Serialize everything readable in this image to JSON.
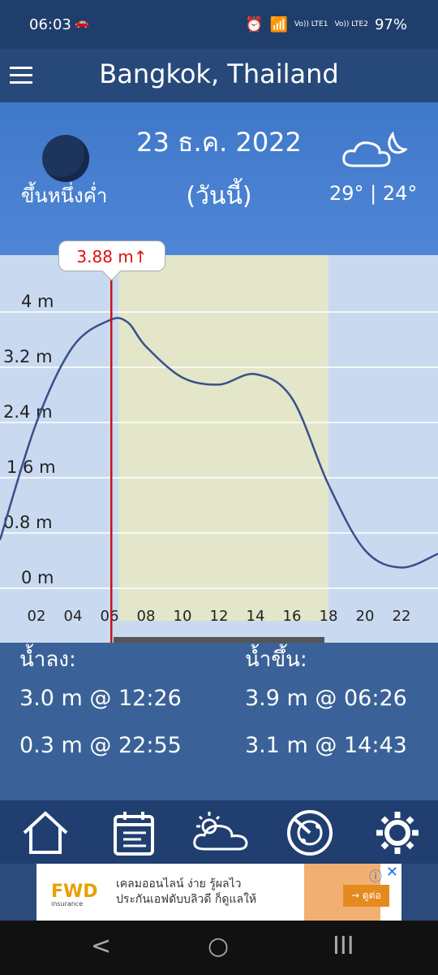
{
  "status_bar": {
    "time": "06:03",
    "signal_1": "Vo)) LTE1",
    "signal_2": "Vo)) LTE2",
    "battery": "97%"
  },
  "header": {
    "title": "Bangkok, Thailand"
  },
  "day": {
    "date": "23 ธ.ค. 2022",
    "today_label": "(วันนี้)",
    "moon_phase": "ขึ้นหนึ่งค่ำ",
    "temps": "29° | 24°"
  },
  "chart": {
    "marker_label": "3.88 m↑",
    "y_labels": [
      "4 m",
      "3.2 m",
      "2.4 m",
      "1.6 m",
      "0.8 m",
      "0 m"
    ],
    "x_labels": [
      "02",
      "04",
      "06",
      "08",
      "10",
      "12",
      "14",
      "16",
      "18",
      "20",
      "22"
    ]
  },
  "chart_data": {
    "type": "line",
    "x": [
      0,
      2,
      4,
      6,
      7,
      8,
      10,
      12,
      14,
      16,
      18,
      20,
      22,
      24
    ],
    "values": [
      0.7,
      2.4,
      3.5,
      3.88,
      3.85,
      3.5,
      3.05,
      2.95,
      3.1,
      2.75,
      1.5,
      0.55,
      0.3,
      0.5
    ],
    "ylim": [
      0,
      4.4
    ],
    "xlim": [
      0,
      24
    ],
    "daylight_span": [
      6.5,
      18
    ],
    "current_time_marker": 6.1,
    "colors": {
      "line": "#3b4f8c",
      "marker": "#cc1111",
      "daylight": "#e3e6c8",
      "night": "#c9daf0"
    }
  },
  "tides": {
    "low_header": "น้ำลง:",
    "high_header": "น้ำขึ้น:",
    "low": [
      "3.0 m @ 12:26",
      "0.3 m @ 22:55"
    ],
    "high": [
      "3.9 m @ 06:26",
      "3.1 m @ 14:43"
    ]
  },
  "nav": [
    "home-icon",
    "calendar-icon",
    "weather-icon",
    "radar-icon",
    "settings-icon"
  ],
  "ad": {
    "logo": "FWD",
    "logo_sub": "insurance",
    "line1": "เคลมออนไลน์ ง่าย รู้ผลไว",
    "line2": "ประกันเอฟดับบลิวดี ก็ดูแลให้",
    "cta": "→ ดูต่อ",
    "info": "ⓘ",
    "close": "✕"
  },
  "system_nav": {
    "back": "<",
    "home": "○",
    "recent": "III"
  }
}
